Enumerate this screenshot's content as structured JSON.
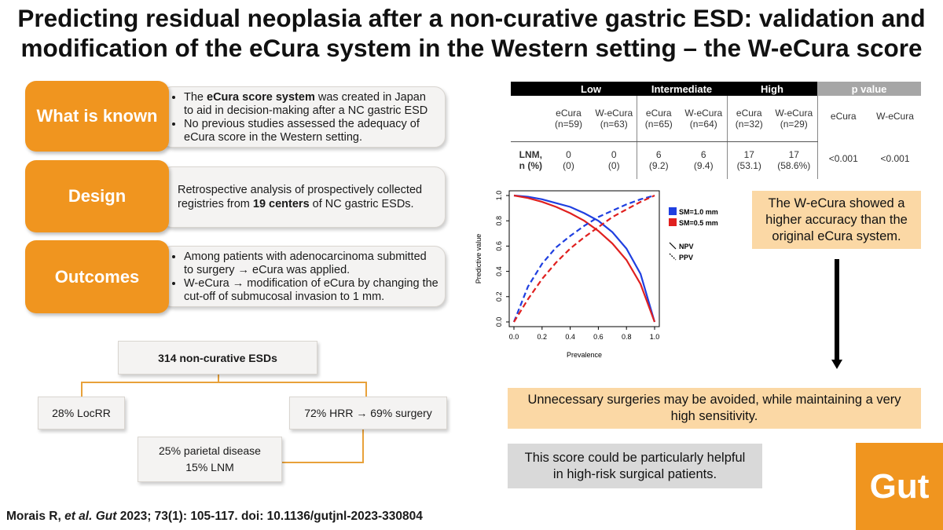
{
  "title": {
    "line1": "Predicting residual neoplasia after a non-curative gastric ESD: validation and",
    "line2": "modification of the eCura system in the Western setting – the W-eCura score"
  },
  "sections": {
    "known": {
      "label": "What is known",
      "b1_pre": "The ",
      "b1_bold": "eCura score system",
      "b1_post": " was created in Japan to aid in decision-making after a NC gastric ESD",
      "b2": "No previous studies assessed the adequacy of eCura score in the Western setting."
    },
    "design": {
      "label": "Design",
      "pre": "Retrospective analysis of prospectively collected registries from ",
      "bold": "19 centers",
      "post": " of NC gastric ESDs."
    },
    "outcomes": {
      "label": "Outcomes",
      "b1": "Among patients with adenocarcinoma submitted to surgery → eCura was applied.",
      "b2": "W-eCura → modification of eCura by changing the cut-off of submucosal invasion to 1 mm."
    }
  },
  "flow": {
    "top": "314 non-curative ESDs",
    "left": "28% LocRR",
    "right": "72% HRR → 69% surgery",
    "bottom_l1": "25% parietal disease",
    "bottom_l2": "15% LNM"
  },
  "table": {
    "groups": [
      "Low",
      "Intermediate",
      "High",
      "p value"
    ],
    "subheaders": [
      {
        "name": "eCura",
        "n": "(n=59)"
      },
      {
        "name": "W-eCura",
        "n": "(n=63)"
      },
      {
        "name": "eCura",
        "n": "(n=65)"
      },
      {
        "name": "W-eCura",
        "n": "(n=64)"
      },
      {
        "name": "eCura",
        "n": "(n=32)"
      },
      {
        "name": "W-eCura",
        "n": "(n=29)"
      }
    ],
    "p_subheaders": [
      "eCura",
      "W-eCura"
    ],
    "row_label_1": "LNM,",
    "row_label_2": "n (%)",
    "values": [
      {
        "n": "0",
        "pct": "(0)"
      },
      {
        "n": "0",
        "pct": "(0)"
      },
      {
        "n": "6",
        "pct": "(9.2)"
      },
      {
        "n": "6",
        "pct": "(9.4)"
      },
      {
        "n": "17",
        "pct": "(53.1)"
      },
      {
        "n": "17",
        "pct": "(58.6%)"
      }
    ],
    "p_values": [
      "<0.001",
      "<0.001"
    ]
  },
  "chart_data": {
    "type": "line",
    "xlabel": "Prevalence",
    "ylabel": "Predictive value",
    "xlim": [
      0,
      1
    ],
    "ylim": [
      0,
      1
    ],
    "xticks": [
      "0.0",
      "0.2",
      "0.4",
      "0.6",
      "0.8",
      "1.0"
    ],
    "yticks": [
      "0.0",
      "0.2",
      "0.4",
      "0.6",
      "0.8",
      "1.0"
    ],
    "legend_colors": [
      {
        "name": "SM=1.0 mm",
        "color": "#1f3fe0"
      },
      {
        "name": "SM=0.5 mm",
        "color": "#e0201f"
      }
    ],
    "legend_styles": [
      {
        "name": "NPV",
        "style": "solid"
      },
      {
        "name": "PPV",
        "style": "dashed"
      }
    ],
    "series": [
      {
        "group": "SM=1.0 mm",
        "metric": "NPV",
        "color": "#1f3fe0",
        "dash": false,
        "x": [
          0,
          0.1,
          0.2,
          0.3,
          0.4,
          0.5,
          0.6,
          0.7,
          0.8,
          0.9,
          1.0
        ],
        "y": [
          1.0,
          0.99,
          0.97,
          0.94,
          0.91,
          0.86,
          0.8,
          0.71,
          0.58,
          0.38,
          0.0
        ]
      },
      {
        "group": "SM=0.5 mm",
        "metric": "NPV",
        "color": "#e0201f",
        "dash": false,
        "x": [
          0,
          0.1,
          0.2,
          0.3,
          0.4,
          0.5,
          0.6,
          0.7,
          0.8,
          0.9,
          1.0
        ],
        "y": [
          1.0,
          0.98,
          0.95,
          0.91,
          0.86,
          0.8,
          0.72,
          0.62,
          0.49,
          0.3,
          0.0
        ]
      },
      {
        "group": "SM=1.0 mm",
        "metric": "PPV",
        "color": "#1f3fe0",
        "dash": true,
        "x": [
          0,
          0.1,
          0.2,
          0.3,
          0.4,
          0.5,
          0.6,
          0.7,
          0.8,
          0.9,
          1.0
        ],
        "y": [
          0.0,
          0.28,
          0.46,
          0.59,
          0.68,
          0.76,
          0.83,
          0.88,
          0.93,
          0.97,
          1.0
        ]
      },
      {
        "group": "SM=0.5 mm",
        "metric": "PPV",
        "color": "#e0201f",
        "dash": true,
        "x": [
          0,
          0.1,
          0.2,
          0.3,
          0.4,
          0.5,
          0.6,
          0.7,
          0.8,
          0.9,
          1.0
        ],
        "y": [
          0.0,
          0.18,
          0.34,
          0.47,
          0.58,
          0.67,
          0.75,
          0.83,
          0.89,
          0.95,
          1.0
        ]
      }
    ]
  },
  "notes": {
    "accuracy": "The W-eCura showed a higher accuracy than the original eCura system.",
    "surgeries": "Unnecessary surgeries may be avoided, while maintaining a very high sensitivity.",
    "helpful": "This score could be particularly helpful in high-risk surgical patients."
  },
  "citation": {
    "authors": "Morais R, ",
    "etal": "et al.",
    "journal": " Gut",
    "rest": " 2023; 73(1): 105-117. doi: 10.1136/gutjnl-2023-330804"
  },
  "logo": "Gut",
  "colors": {
    "orange": "#f0951f",
    "note_bg": "#fbd8a5",
    "grey_note": "#d9d9d9",
    "table_header": "#000000",
    "p_header": "#a6a6a6"
  }
}
